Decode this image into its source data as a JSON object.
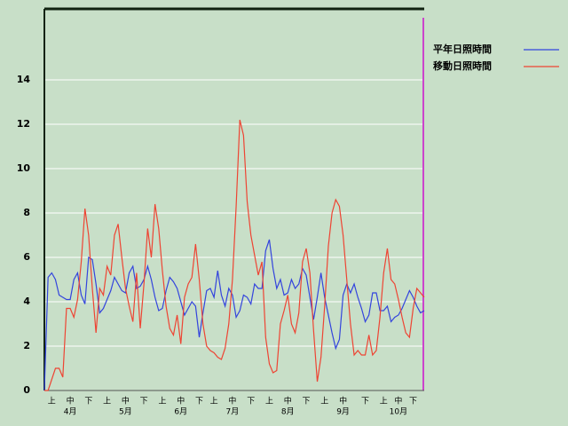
{
  "chart_data": {
    "type": "line",
    "categories": [
      null,
      null,
      "上",
      null,
      null,
      null,
      null,
      "中",
      null,
      null,
      null,
      null,
      "下",
      null,
      null,
      null,
      null,
      "上",
      null,
      null,
      null,
      null,
      "中",
      null,
      null,
      null,
      null,
      "下",
      null,
      null,
      null,
      null,
      "上",
      null,
      null,
      null,
      null,
      "中",
      null,
      null,
      null,
      null,
      "下",
      null,
      null,
      null,
      "上",
      null,
      null,
      null,
      null,
      "中",
      null,
      null,
      null,
      null,
      "下",
      null,
      null,
      null,
      null,
      "上",
      null,
      null,
      null,
      null,
      "中",
      null,
      null,
      null,
      null,
      "下",
      null,
      null,
      null,
      null,
      "上",
      null,
      null,
      null,
      null,
      "中",
      null,
      null,
      null,
      null,
      null,
      "下",
      null,
      null,
      null,
      null,
      "上",
      null,
      null,
      null,
      "中",
      null,
      null,
      null,
      "下",
      null,
      null,
      null
    ],
    "month_categories": [
      null,
      null,
      null,
      null,
      null,
      null,
      null,
      "4月",
      null,
      null,
      null,
      null,
      null,
      null,
      null,
      null,
      null,
      null,
      null,
      null,
      null,
      null,
      "5月",
      null,
      null,
      null,
      null,
      null,
      null,
      null,
      null,
      null,
      null,
      null,
      null,
      null,
      null,
      "6月",
      null,
      null,
      null,
      null,
      null,
      null,
      null,
      null,
      null,
      null,
      null,
      null,
      null,
      "7月",
      null,
      null,
      null,
      null,
      null,
      null,
      null,
      null,
      null,
      null,
      null,
      null,
      null,
      null,
      "8月",
      null,
      null,
      null,
      null,
      null,
      null,
      null,
      null,
      null,
      null,
      null,
      null,
      null,
      null,
      "9月",
      null,
      null,
      null,
      null,
      null,
      null,
      null,
      null,
      null,
      null,
      null,
      null,
      null,
      null,
      "10月",
      null,
      null,
      null,
      null,
      null,
      null,
      null
    ],
    "series": [
      {
        "name": "平年日照時間",
        "color": "#3344dd",
        "values": [
          0,
          5.1,
          5.3,
          5.0,
          4.3,
          4.2,
          4.1,
          4.1,
          5,
          5.3,
          4.3,
          3.9,
          6,
          5.9,
          4.8,
          3.5,
          3.7,
          4.1,
          4.5,
          5.1,
          4.8,
          4.5,
          4.4,
          5.3,
          5.6,
          4.6,
          4.7,
          5,
          5.6,
          5,
          4.2,
          3.6,
          3.7,
          4.5,
          5.1,
          4.9,
          4.6,
          4,
          3.4,
          3.7,
          4,
          3.8,
          2.4,
          3.5,
          4.5,
          4.6,
          4.2,
          5.4,
          4.3,
          3.8,
          4.6,
          4.3,
          3.3,
          3.6,
          4.3,
          4.2,
          3.9,
          4.8,
          4.6,
          4.6,
          6.3,
          6.8,
          5.5,
          4.6,
          5,
          4.3,
          4.4,
          5,
          4.6,
          4.8,
          5.5,
          5.2,
          4.2,
          3.2,
          4.2,
          5.3,
          4.2,
          3.4,
          2.6,
          1.9,
          2.3,
          4.3,
          4.8,
          4.4,
          4.8,
          4.2,
          3.7,
          3.1,
          3.4,
          4.4,
          4.4,
          3.6,
          3.6,
          3.8,
          3.1,
          3.3,
          3.4,
          3.7,
          4.1,
          4.5,
          4.2,
          3.8,
          3.5,
          3.6
        ]
      },
      {
        "name": "移動日照時間",
        "color": "#ee4433",
        "values": [
          0,
          0,
          0.5,
          1,
          1,
          0.6,
          3.7,
          3.7,
          3.3,
          4.1,
          5.8,
          8.2,
          7,
          4.6,
          2.6,
          4.6,
          4.3,
          5.6,
          5.2,
          7,
          7.5,
          6,
          4.6,
          3.8,
          3.1,
          5.3,
          2.8,
          4.8,
          7.3,
          6,
          8.4,
          7.3,
          5.4,
          3.8,
          2.8,
          2.5,
          3.4,
          2.1,
          4.2,
          4.8,
          5.1,
          6.6,
          5,
          3,
          2,
          1.8,
          1.7,
          1.5,
          1.4,
          1.9,
          3,
          5,
          8.3,
          12.2,
          11.5,
          8.5,
          7,
          6.1,
          5.2,
          5.8,
          2.4,
          1.2,
          0.8,
          0.9,
          3,
          3.6,
          4.3,
          3,
          2.6,
          3.5,
          5.8,
          6.4,
          5.3,
          2.7,
          0.4,
          1.5,
          3.8,
          6.5,
          8,
          8.6,
          8.3,
          7,
          5,
          3,
          1.6,
          1.8,
          1.6,
          1.6,
          2.5,
          1.6,
          1.8,
          3.3,
          5.3,
          6.4,
          5,
          4.8,
          4.1,
          3.3,
          2.6,
          2.4,
          3.7,
          4.6,
          4.4,
          4.2
        ]
      }
    ],
    "ylim": [
      0,
      17.2
    ],
    "yticks": [
      0,
      2,
      4,
      6,
      8,
      10,
      12,
      14
    ],
    "grid": true
  }
}
